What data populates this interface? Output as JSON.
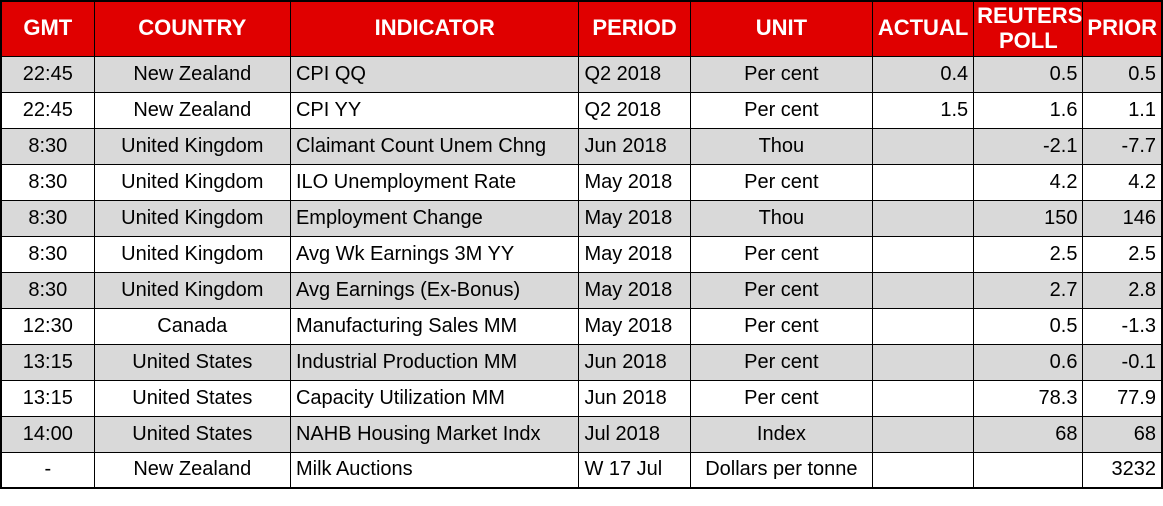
{
  "chart_data": {
    "type": "table",
    "columns": [
      {
        "key": "gmt",
        "label": "GMT"
      },
      {
        "key": "country",
        "label": "COUNTRY"
      },
      {
        "key": "indicator",
        "label": "INDICATOR"
      },
      {
        "key": "period",
        "label": "PERIOD"
      },
      {
        "key": "unit",
        "label": "UNIT"
      },
      {
        "key": "actual",
        "label": "ACTUAL"
      },
      {
        "key": "poll",
        "label": "REUTERS POLL"
      },
      {
        "key": "prior",
        "label": "PRIOR"
      }
    ],
    "rows": [
      [
        "22:45",
        "New Zealand",
        "CPI QQ",
        "Q2 2018",
        "Per cent",
        "0.4",
        "0.5",
        "0.5"
      ],
      [
        "22:45",
        "New Zealand",
        "CPI YY",
        "Q2 2018",
        "Per cent",
        "1.5",
        "1.6",
        "1.1"
      ],
      [
        "8:30",
        "United Kingdom",
        "Claimant Count Unem Chng",
        "Jun 2018",
        "Thou",
        "",
        "-2.1",
        "-7.7"
      ],
      [
        "8:30",
        "United Kingdom",
        "ILO Unemployment Rate",
        "May 2018",
        "Per cent",
        "",
        "4.2",
        "4.2"
      ],
      [
        "8:30",
        "United Kingdom",
        "Employment Change",
        "May 2018",
        "Thou",
        "",
        "150",
        "146"
      ],
      [
        "8:30",
        "United Kingdom",
        "Avg Wk Earnings 3M YY",
        "May 2018",
        "Per cent",
        "",
        "2.5",
        "2.5"
      ],
      [
        "8:30",
        "United Kingdom",
        "Avg Earnings (Ex-Bonus)",
        "May 2018",
        "Per cent",
        "",
        "2.7",
        "2.8"
      ],
      [
        "12:30",
        "Canada",
        "Manufacturing Sales MM",
        "May 2018",
        "Per cent",
        "",
        "0.5",
        "-1.3"
      ],
      [
        "13:15",
        "United States",
        "Industrial Production MM",
        "Jun 2018",
        "Per cent",
        "",
        "0.6",
        "-0.1"
      ],
      [
        "13:15",
        "United States",
        "Capacity Utilization MM",
        "Jun 2018",
        "Per cent",
        "",
        "78.3",
        "77.9"
      ],
      [
        "14:00",
        "United States",
        "NAHB Housing Market Indx",
        "Jul 2018",
        "Index",
        "",
        "68",
        "68"
      ],
      [
        "-",
        "New Zealand",
        "Milk Auctions",
        "W 17 Jul",
        "Dollars per tonne",
        "",
        "",
        "3232"
      ]
    ]
  },
  "colors": {
    "header_bg": "#E00000",
    "header_text": "#FFFFFF",
    "row_alt_bg": "#D9D9D9",
    "row_bg": "#FFFFFF",
    "border": "#000000",
    "body_text": "#000000"
  }
}
